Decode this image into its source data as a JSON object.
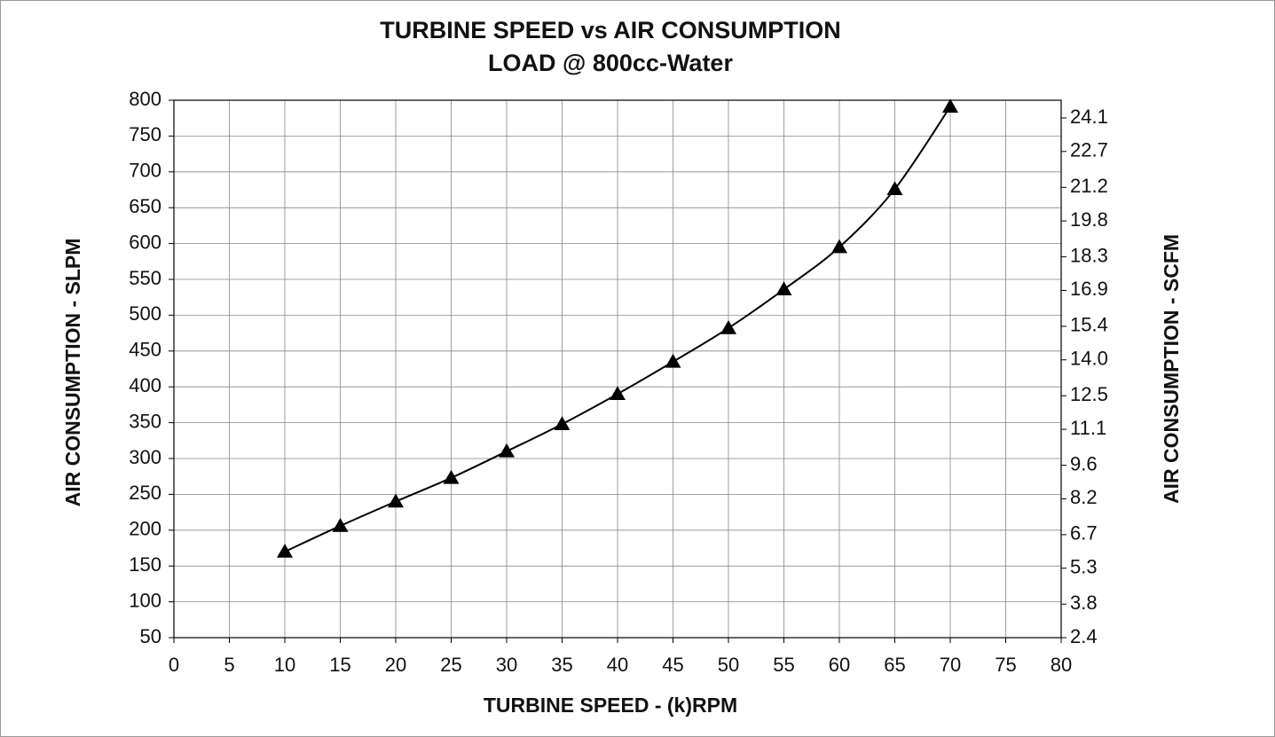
{
  "chart_data": {
    "type": "line",
    "title": "TURBINE SPEED vs AIR CONSUMPTION",
    "subtitle": "LOAD @ 800cc-Water",
    "x_label": "TURBINE SPEED - (k)RPM",
    "y_label": "AIR CONSUMPTION - SLPM",
    "y2_label": "AIR CONSUMPTION - SCFM",
    "x": [
      10,
      15,
      20,
      25,
      30,
      35,
      40,
      45,
      50,
      55,
      60,
      65,
      70
    ],
    "series": [
      {
        "name": "Air Consumption",
        "color": "#000000",
        "values": [
          170,
          206,
          240,
          273,
          310,
          348,
          390,
          435,
          482,
          536,
          595,
          676,
          791
        ]
      }
    ],
    "xlim": [
      0,
      80
    ],
    "xticks": [
      0,
      5,
      10,
      15,
      20,
      25,
      30,
      35,
      40,
      45,
      50,
      55,
      60,
      65,
      70,
      75,
      80
    ],
    "ylim": [
      50,
      800
    ],
    "yticks": [
      50,
      100,
      150,
      200,
      250,
      300,
      350,
      400,
      450,
      500,
      550,
      600,
      650,
      700,
      750,
      800
    ],
    "y2lim": [
      2.4,
      24.84
    ],
    "y2ticks": [
      2.4,
      3.8,
      5.3,
      6.7,
      8.2,
      9.6,
      11.1,
      12.5,
      {
        "value": 14,
        "label": "14.0"
      },
      15.4,
      16.9,
      18.3,
      19.8,
      21.2,
      22.7,
      24.1
    ],
    "grid": true,
    "marker": "triangle"
  }
}
